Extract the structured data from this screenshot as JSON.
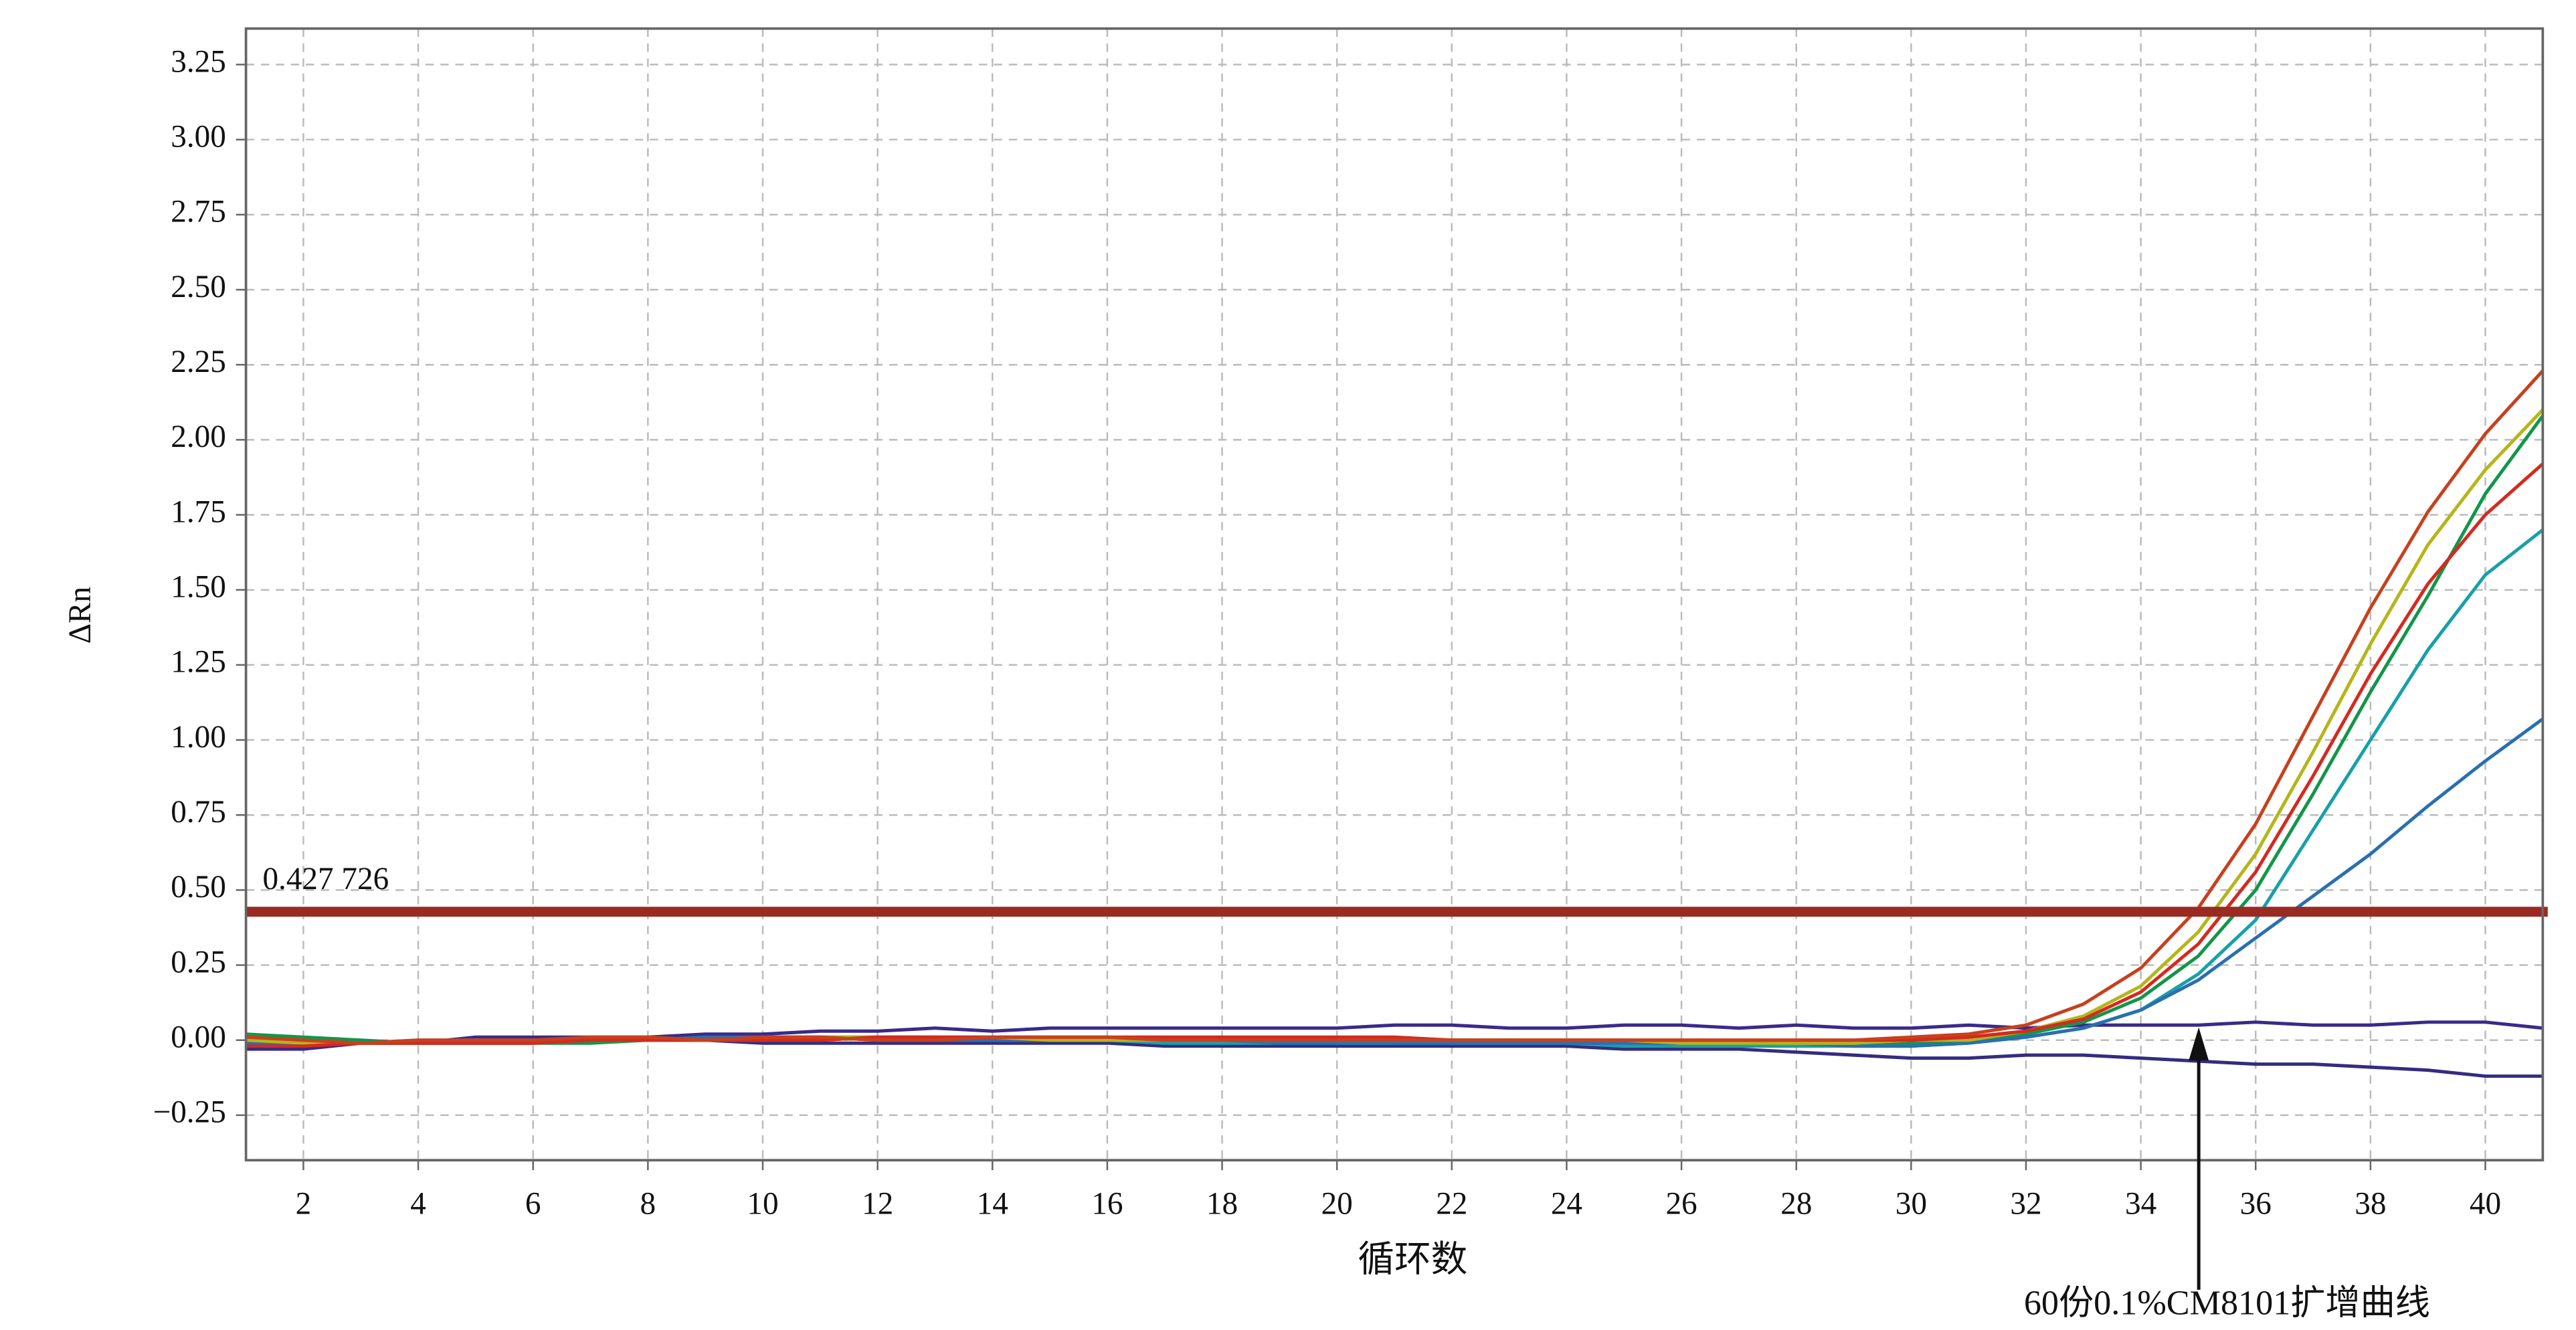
{
  "chart_data": {
    "type": "line",
    "ylabel": "ΔRn",
    "xlabel": "循环数",
    "annotation": "60份0.1%CM8101扩增曲线",
    "threshold": {
      "value": 0.427726,
      "label": "0.427 726",
      "color": "#9a2a22"
    },
    "grid": true,
    "xlim": [
      1,
      41
    ],
    "ylim": [
      -0.4,
      3.37
    ],
    "xticks": [
      2,
      4,
      6,
      8,
      10,
      12,
      14,
      16,
      18,
      20,
      22,
      24,
      26,
      28,
      30,
      32,
      34,
      36,
      38,
      40
    ],
    "yticks": [
      {
        "value": -0.25,
        "label": "−0.25"
      },
      {
        "value": 0,
        "label": "0.00"
      },
      {
        "value": 0.25,
        "label": "0.25"
      },
      {
        "value": 0.5,
        "label": "0.50"
      },
      {
        "value": 0.75,
        "label": "0.75"
      },
      {
        "value": 1,
        "label": "1.00"
      },
      {
        "value": 1.25,
        "label": "1.25"
      },
      {
        "value": 1.5,
        "label": "1.50"
      },
      {
        "value": 1.75,
        "label": "1.75"
      },
      {
        "value": 2,
        "label": "2.00"
      },
      {
        "value": 2.25,
        "label": "2.25"
      },
      {
        "value": 2.5,
        "label": "2.50"
      },
      {
        "value": 2.75,
        "label": "2.75"
      },
      {
        "value": 3,
        "label": "3.00"
      },
      {
        "value": 3.25,
        "label": "3.25"
      }
    ],
    "x": [
      1,
      2,
      3,
      4,
      5,
      6,
      7,
      8,
      9,
      10,
      11,
      12,
      13,
      14,
      15,
      16,
      17,
      18,
      19,
      20,
      21,
      22,
      23,
      24,
      25,
      26,
      27,
      28,
      29,
      30,
      31,
      32,
      33,
      34,
      35,
      36,
      37,
      38,
      39,
      40,
      41
    ],
    "series": [
      {
        "color": "#3a2a8a",
        "values": [
          -0.03,
          -0.03,
          -0.01,
          -0.01,
          0.01,
          0.01,
          0.01,
          0.01,
          0.02,
          0.02,
          0.03,
          0.03,
          0.04,
          0.03,
          0.04,
          0.04,
          0.04,
          0.04,
          0.04,
          0.04,
          0.05,
          0.05,
          0.04,
          0.04,
          0.05,
          0.05,
          0.04,
          0.05,
          0.04,
          0.04,
          0.05,
          0.04,
          0.05,
          0.05,
          0.05,
          0.06,
          0.05,
          0.05,
          0.06,
          0.06,
          0.04
        ]
      },
      {
        "color": "#352c80",
        "values": [
          -0.02,
          -0.02,
          -0.01,
          -0.01,
          -0.01,
          -0.01,
          0.0,
          0.0,
          0.0,
          -0.01,
          -0.01,
          -0.01,
          -0.01,
          -0.01,
          -0.01,
          -0.01,
          -0.02,
          -0.02,
          -0.02,
          -0.02,
          -0.02,
          -0.02,
          -0.02,
          -0.02,
          -0.03,
          -0.03,
          -0.03,
          -0.04,
          -0.05,
          -0.06,
          -0.06,
          -0.05,
          -0.05,
          -0.06,
          -0.07,
          -0.08,
          -0.08,
          -0.09,
          -0.1,
          -0.12,
          -0.12
        ]
      },
      {
        "color": "#12964a",
        "values": [
          0.02,
          0.01,
          0.0,
          -0.01,
          -0.01,
          -0.01,
          -0.01,
          0.0,
          0.01,
          0.0,
          0.0,
          0.01,
          0.01,
          0.0,
          0.0,
          0.0,
          0.0,
          0.0,
          0.0,
          -0.01,
          -0.01,
          0.0,
          0.0,
          -0.01,
          -0.01,
          -0.01,
          -0.01,
          -0.01,
          -0.01,
          -0.01,
          0.0,
          0.02,
          0.06,
          0.14,
          0.28,
          0.5,
          0.82,
          1.16,
          1.48,
          1.82,
          2.08
        ]
      },
      {
        "color": "#18a0a8",
        "values": [
          0.0,
          0.0,
          -0.01,
          -0.01,
          -0.01,
          -0.01,
          0.0,
          0.0,
          0.0,
          0.01,
          0.01,
          0.0,
          0.0,
          0.0,
          0.0,
          0.0,
          -0.01,
          -0.01,
          -0.01,
          -0.01,
          -0.01,
          -0.01,
          -0.01,
          -0.01,
          -0.02,
          -0.02,
          -0.02,
          -0.02,
          -0.02,
          -0.02,
          -0.01,
          0.01,
          0.04,
          0.1,
          0.22,
          0.4,
          0.7,
          1.0,
          1.3,
          1.55,
          1.7
        ]
      },
      {
        "color": "#2a6fb0",
        "values": [
          -0.01,
          -0.01,
          -0.01,
          0.0,
          0.0,
          0.0,
          0.0,
          0.0,
          0.01,
          0.01,
          0.01,
          0.01,
          0.0,
          0.0,
          0.0,
          0.0,
          0.0,
          0.0,
          -0.01,
          -0.01,
          -0.01,
          -0.01,
          -0.01,
          -0.01,
          -0.01,
          -0.01,
          -0.01,
          -0.01,
          -0.02,
          -0.02,
          -0.01,
          0.01,
          0.04,
          0.1,
          0.2,
          0.34,
          0.48,
          0.62,
          0.78,
          0.93,
          1.07
        ]
      },
      {
        "color": "#b5b51a",
        "values": [
          0.0,
          -0.01,
          -0.01,
          -0.01,
          0.0,
          0.0,
          0.0,
          0.0,
          0.0,
          0.0,
          0.01,
          0.01,
          0.01,
          0.01,
          0.0,
          0.0,
          0.0,
          0.0,
          0.0,
          0.0,
          0.0,
          0.0,
          0.0,
          0.0,
          0.0,
          -0.01,
          -0.01,
          -0.01,
          -0.01,
          0.0,
          0.0,
          0.03,
          0.08,
          0.18,
          0.36,
          0.62,
          0.96,
          1.32,
          1.65,
          1.9,
          2.1
        ]
      },
      {
        "color": "#d42a20",
        "values": [
          -0.02,
          -0.02,
          -0.01,
          -0.01,
          -0.01,
          -0.01,
          0.0,
          0.0,
          0.0,
          0.0,
          0.0,
          0.01,
          0.01,
          0.01,
          0.01,
          0.01,
          0.01,
          0.01,
          0.01,
          0.01,
          0.01,
          0.0,
          0.0,
          0.0,
          0.0,
          0.0,
          0.0,
          0.0,
          0.0,
          0.0,
          0.01,
          0.03,
          0.07,
          0.16,
          0.32,
          0.56,
          0.88,
          1.22,
          1.52,
          1.75,
          1.92
        ]
      },
      {
        "color": "#c8401e",
        "values": [
          0.01,
          0.0,
          -0.01,
          0.0,
          0.0,
          0.0,
          0.01,
          0.01,
          0.0,
          0.01,
          0.01,
          0.0,
          0.0,
          0.01,
          0.01,
          0.01,
          0.0,
          0.0,
          0.0,
          0.0,
          0.0,
          0.0,
          0.0,
          0.0,
          0.0,
          0.0,
          0.0,
          0.0,
          0.0,
          0.01,
          0.02,
          0.05,
          0.12,
          0.24,
          0.44,
          0.72,
          1.08,
          1.44,
          1.76,
          2.02,
          2.23
        ]
      }
    ]
  }
}
